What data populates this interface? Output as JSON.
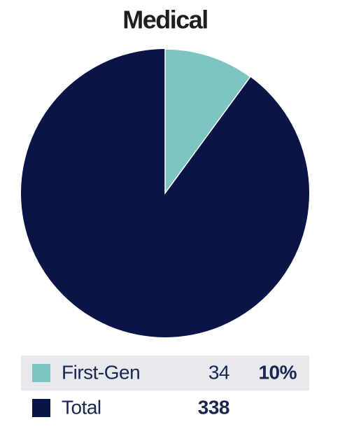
{
  "chart_data": {
    "type": "pie",
    "title": "Medical",
    "rows": [
      {
        "name": "First-Gen",
        "color": "#7ec5c2",
        "value": 34,
        "percent": {
          "value": 10,
          "label": "10%"
        }
      },
      {
        "name": "Total",
        "color": "#0b1446",
        "value": 338
      }
    ]
  }
}
